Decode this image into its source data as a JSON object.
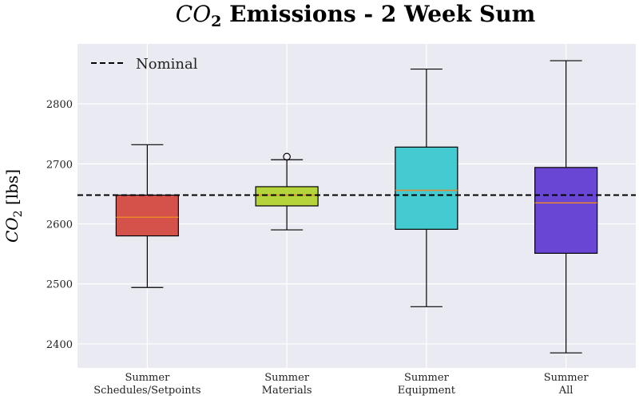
{
  "chart_data": {
    "type": "box",
    "title": {
      "var": "CO",
      "sub": "2",
      "rest": " Emissions - 2 Week Sum"
    },
    "ylabel": {
      "var": "CO",
      "sub": "2",
      "rest": " [lbs]"
    },
    "ylim": [
      2360,
      2900
    ],
    "yticks": [
      2400,
      2500,
      2600,
      2700,
      2800
    ],
    "grid": true,
    "background": "#EAEAF2",
    "categories": [
      [
        "Summer",
        "Schedules/Setpoints"
      ],
      [
        "Summer",
        "Materials"
      ],
      [
        "Summer",
        "Equipment"
      ],
      [
        "Summer",
        "All"
      ]
    ],
    "boxes": [
      {
        "whislo": 2494,
        "q1": 2580,
        "med": 2611,
        "q3": 2648,
        "whishi": 2732,
        "fliers": [],
        "color": "#D4524A"
      },
      {
        "whislo": 2590,
        "q1": 2630,
        "med": 2648,
        "q3": 2662,
        "whishi": 2707,
        "fliers": [
          2712
        ],
        "color": "#B5D33A"
      },
      {
        "whislo": 2462,
        "q1": 2591,
        "med": 2656,
        "q3": 2728,
        "whishi": 2858,
        "fliers": [],
        "color": "#44CBD2"
      },
      {
        "whislo": 2385,
        "q1": 2551,
        "med": 2635,
        "q3": 2694,
        "whishi": 2872,
        "fliers": [],
        "color": "#6A46D5"
      }
    ],
    "median_color": "#E8862C",
    "nominal": {
      "label": "Nominal",
      "value": 2648,
      "color": "#000000"
    },
    "legend_position": "top-left"
  }
}
